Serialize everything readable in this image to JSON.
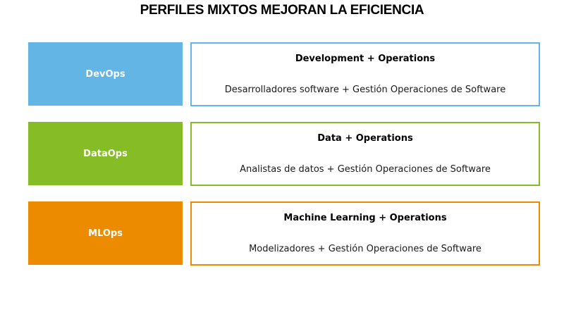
{
  "title": "PERFILES MIXTOS MEJORAN LA EFICIENCIA",
  "rows": [
    {
      "label": "DevOps",
      "heading": "Development + Operations",
      "description": "Desarrolladores software + Gestión Operaciones de Software",
      "color": "#62b5e5"
    },
    {
      "label": "DataOps",
      "heading": "Data + Operations",
      "description": "Analistas de datos + Gestión Operaciones de Software",
      "color": "#86bc25"
    },
    {
      "label": "MLOps",
      "heading": "Machine Learning + Operations",
      "description": "Modelizadores + Gestión Operaciones de Software",
      "color": "#ed8b00"
    }
  ]
}
